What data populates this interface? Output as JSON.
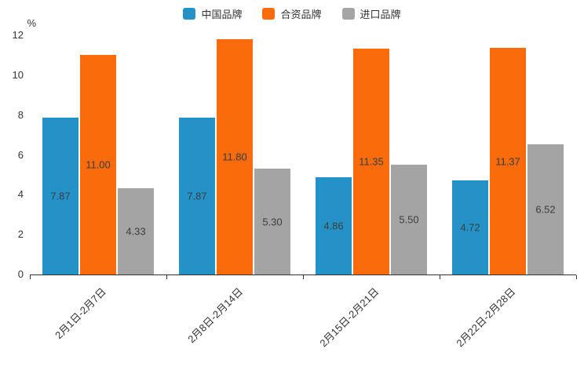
{
  "chart_data": {
    "type": "bar",
    "title": "",
    "unit_label": "%",
    "categories": [
      "2月1日-2月7日",
      "2月8日-2月14日",
      "2月15日-2月21日",
      "2月22日-2月28日"
    ],
    "series": [
      {
        "name": "中国品牌",
        "color": "#2492C7",
        "values": [
          7.87,
          7.87,
          4.86,
          4.72
        ]
      },
      {
        "name": "合资品牌",
        "color": "#F96B0B",
        "values": [
          11.0,
          11.8,
          11.35,
          11.37
        ]
      },
      {
        "name": "进口品牌",
        "color": "#A4A4A4",
        "values": [
          4.33,
          5.3,
          5.5,
          6.52
        ]
      }
    ],
    "value_label_decimals": 2,
    "ylim": [
      0,
      12
    ],
    "yticks": [
      0,
      2,
      4,
      6,
      8,
      10,
      12
    ],
    "grid": false,
    "legend_position": "top"
  }
}
